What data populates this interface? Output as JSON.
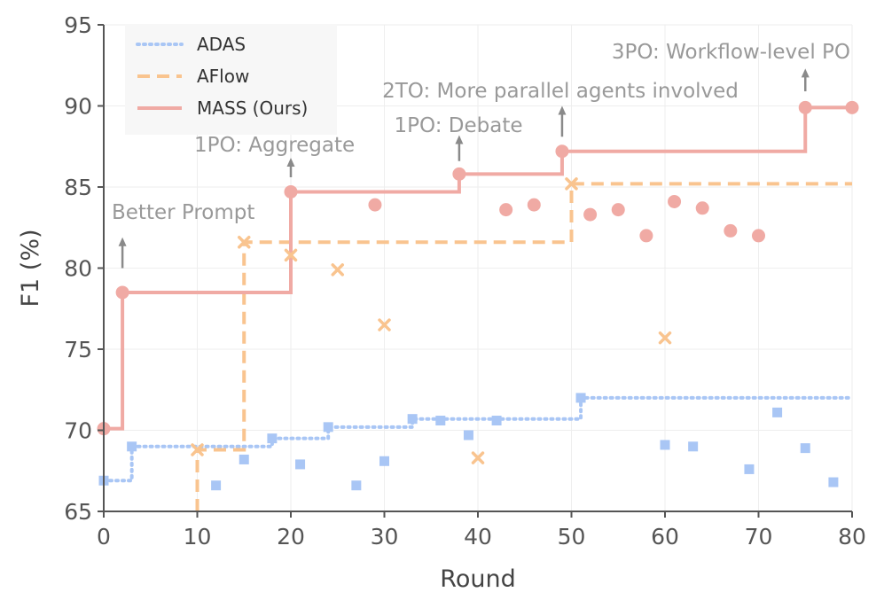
{
  "chart_data": {
    "type": "line",
    "title": "",
    "xlabel": "Round",
    "ylabel": "F1 (%)",
    "xlim": [
      0,
      80
    ],
    "ylim": [
      65,
      95
    ],
    "xticks": [
      "0",
      "10",
      "20",
      "30",
      "40",
      "50",
      "60",
      "70",
      "80"
    ],
    "yticks": [
      "65",
      "70",
      "75",
      "80",
      "85",
      "90",
      "95"
    ],
    "grid": true,
    "legend_position": "top-left",
    "series": [
      {
        "name": "ADAS",
        "color": "#a9c6f5",
        "line_style": "dotted",
        "marker": "square",
        "step_x": [
          0,
          3,
          3,
          18,
          18,
          24,
          24,
          33,
          33,
          51,
          51,
          80
        ],
        "step_y": [
          66.9,
          66.9,
          69.0,
          69.0,
          69.5,
          69.5,
          70.2,
          70.2,
          70.7,
          70.7,
          72.0,
          72.0
        ],
        "points": [
          {
            "x": 0,
            "y": 66.9
          },
          {
            "x": 3,
            "y": 69.0
          },
          {
            "x": 12,
            "y": 66.6
          },
          {
            "x": 15,
            "y": 68.2
          },
          {
            "x": 18,
            "y": 69.5
          },
          {
            "x": 21,
            "y": 67.9
          },
          {
            "x": 24,
            "y": 70.2
          },
          {
            "x": 27,
            "y": 66.6
          },
          {
            "x": 30,
            "y": 68.1
          },
          {
            "x": 33,
            "y": 70.7
          },
          {
            "x": 36,
            "y": 70.6
          },
          {
            "x": 39,
            "y": 69.7
          },
          {
            "x": 42,
            "y": 70.6
          },
          {
            "x": 51,
            "y": 72.0
          },
          {
            "x": 60,
            "y": 69.1
          },
          {
            "x": 63,
            "y": 69.0
          },
          {
            "x": 69,
            "y": 67.6
          },
          {
            "x": 72,
            "y": 71.1
          },
          {
            "x": 75,
            "y": 68.9
          },
          {
            "x": 78,
            "y": 66.8
          }
        ]
      },
      {
        "name": "AFlow",
        "color": "#f9c48f",
        "line_style": "dashed",
        "marker": "x",
        "step_x": [
          10,
          10,
          15,
          15,
          50,
          50,
          80
        ],
        "step_y": [
          65,
          68.8,
          68.8,
          81.6,
          81.6,
          85.2,
          85.2
        ],
        "points": [
          {
            "x": 10,
            "y": 68.8
          },
          {
            "x": 15,
            "y": 81.6
          },
          {
            "x": 20,
            "y": 80.8
          },
          {
            "x": 25,
            "y": 79.9
          },
          {
            "x": 30,
            "y": 76.5
          },
          {
            "x": 40,
            "y": 68.3
          },
          {
            "x": 50,
            "y": 85.2
          },
          {
            "x": 60,
            "y": 75.7
          }
        ]
      },
      {
        "name": "MASS (Ours)",
        "color": "#f0aaa4",
        "line_style": "solid",
        "marker": "circle",
        "step_x": [
          0,
          2,
          2,
          20,
          20,
          38,
          38,
          49,
          49,
          75,
          75,
          80
        ],
        "step_y": [
          70.1,
          70.1,
          78.5,
          78.5,
          84.7,
          84.7,
          85.8,
          85.8,
          87.2,
          87.2,
          89.9,
          89.9
        ],
        "points": [
          {
            "x": 0,
            "y": 70.1
          },
          {
            "x": 2,
            "y": 78.5
          },
          {
            "x": 20,
            "y": 84.7
          },
          {
            "x": 29,
            "y": 83.9
          },
          {
            "x": 38,
            "y": 85.8
          },
          {
            "x": 43,
            "y": 83.6
          },
          {
            "x": 46,
            "y": 83.9
          },
          {
            "x": 49,
            "y": 87.2
          },
          {
            "x": 52,
            "y": 83.3
          },
          {
            "x": 55,
            "y": 83.6
          },
          {
            "x": 58,
            "y": 82.0
          },
          {
            "x": 61,
            "y": 84.1
          },
          {
            "x": 64,
            "y": 83.7
          },
          {
            "x": 67,
            "y": 82.3
          },
          {
            "x": 70,
            "y": 82.0
          },
          {
            "x": 75,
            "y": 89.9
          },
          {
            "x": 80,
            "y": 89.9
          }
        ]
      }
    ],
    "annotations": [
      {
        "text": "Better Prompt",
        "x": 2,
        "y_from": 80.0,
        "y_to": 81.9
      },
      {
        "text": "1PO: Aggregate",
        "x": 20,
        "y_from": 85.6,
        "y_to": 86.8
      },
      {
        "text": "1PO: Debate",
        "x": 38,
        "y_from": 86.6,
        "y_to": 88.2
      },
      {
        "text": "2TO: More parallel agents involved",
        "x": 49,
        "y_from": 88.1,
        "y_to": 90.0
      },
      {
        "text": "3PO: Workflow-level PO",
        "x": 75,
        "y_from": 90.9,
        "y_to": 92.3
      }
    ]
  }
}
